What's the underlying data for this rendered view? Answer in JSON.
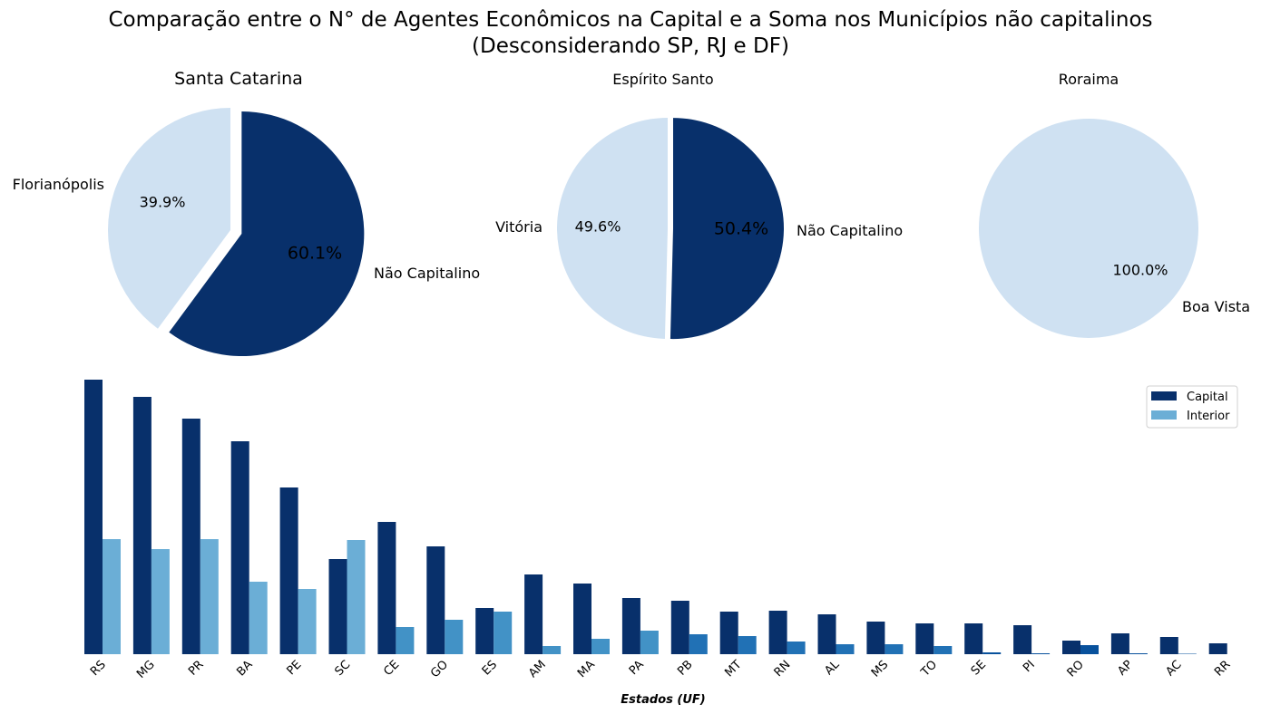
{
  "title_line1": "Comparação entre o N° de Agentes Econômicos na Capital e a Soma nos Municípios não capitalinos",
  "title_line2": "(Desconsiderando SP, RJ e DF)",
  "colors": {
    "capital_dark": "#08306b",
    "interior_light": "#cfe1f2",
    "bar_interior_palette": [
      "#6baed6",
      "#4292c6",
      "#2171b5",
      "#08519c"
    ]
  },
  "chart_data": [
    {
      "type": "pie",
      "title": "Santa Catarina",
      "slices": [
        {
          "label": "Florianópolis",
          "value": 39.9,
          "pct_label": "39.9%",
          "color": "#cfe1f2"
        },
        {
          "label": "Não Capitalino",
          "value": 60.1,
          "pct_label": "60.1%",
          "color": "#08306b"
        }
      ]
    },
    {
      "type": "pie",
      "title": "Espírito Santo",
      "slices": [
        {
          "label": "Vitória",
          "value": 49.6,
          "pct_label": "49.6%",
          "color": "#cfe1f2"
        },
        {
          "label": "Não Capitalino",
          "value": 50.4,
          "pct_label": "50.4%",
          "color": "#08306b"
        }
      ]
    },
    {
      "type": "pie",
      "title": "Roraima",
      "slices": [
        {
          "label": "Boa Vista",
          "value": 100.0,
          "pct_label": "100.0%",
          "color": "#cfe1f2"
        }
      ]
    },
    {
      "type": "bar",
      "categories": [
        "RS",
        "MG",
        "PR",
        "BA",
        "PE",
        "SC",
        "CE",
        "GO",
        "ES",
        "AM",
        "MA",
        "PA",
        "PB",
        "MT",
        "RN",
        "AL",
        "MS",
        "TO",
        "SE",
        "PI",
        "RO",
        "AP",
        "AC",
        "RR"
      ],
      "series": [
        {
          "name": "Capital",
          "values": [
            303,
            284,
            260,
            235,
            184,
            105,
            146,
            119,
            51,
            88,
            78,
            62,
            59,
            47,
            48,
            44,
            36,
            34,
            34,
            32,
            15,
            23,
            19,
            12
          ]
        },
        {
          "name": "Interior",
          "values": [
            127,
            116,
            127,
            80,
            72,
            126,
            30,
            38,
            47,
            9,
            17,
            26,
            22,
            20,
            14,
            11,
            11,
            9,
            2,
            1,
            10,
            1,
            0.5,
            0
          ]
        }
      ],
      "xlabel": "Estados (UF)",
      "ylabel": "",
      "ylim": [
        0,
        303
      ],
      "legend_position": "top-right",
      "grid": false
    }
  ]
}
